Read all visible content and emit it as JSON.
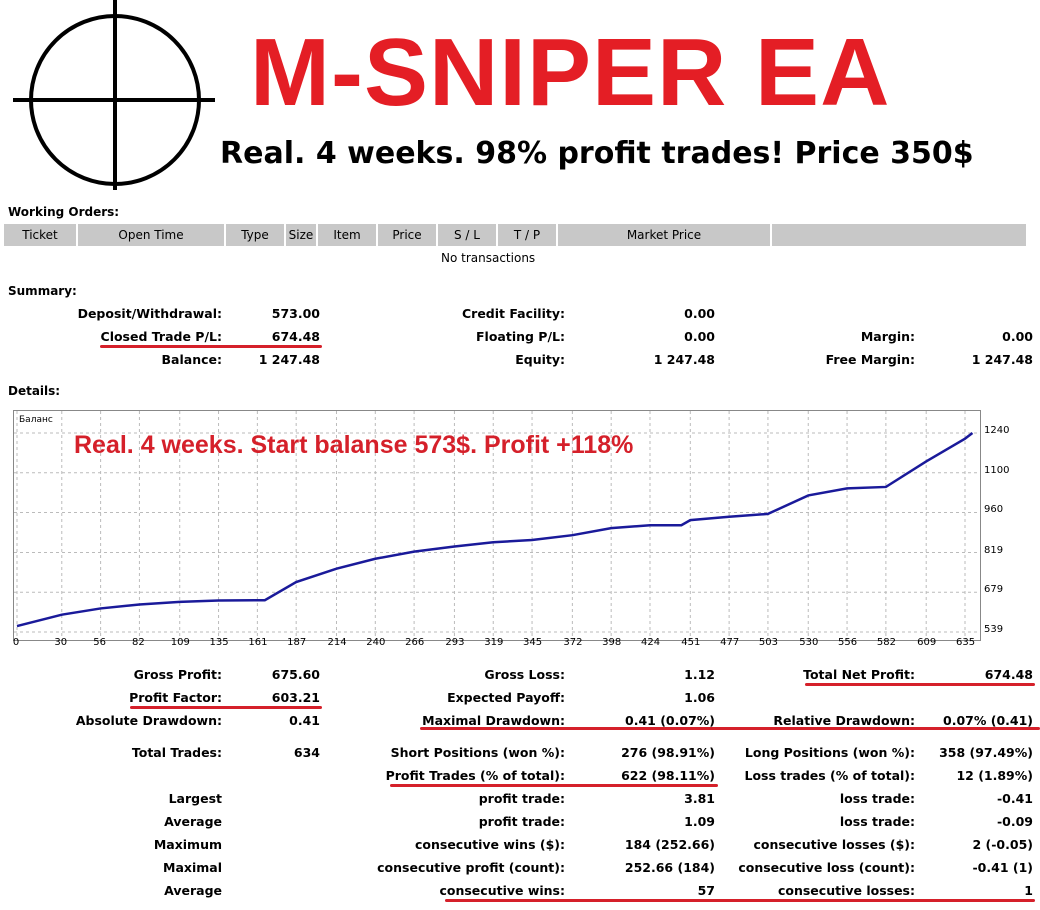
{
  "header": {
    "title": "M-SNIPER EA",
    "subtitle": "Real. 4 weeks. 98% profit trades! Price 350$"
  },
  "working_orders": {
    "heading": "Working Orders:",
    "columns": [
      "Ticket",
      "Open Time",
      "Type",
      "Size",
      "Item",
      "Price",
      "S / L",
      "T / P",
      "Market Price",
      ""
    ],
    "empty_text": "No transactions"
  },
  "summary": {
    "heading": "Summary:",
    "rows": [
      [
        [
          "Deposit/Withdrawal:",
          "573.00"
        ],
        [
          "Credit Facility:",
          "0.00"
        ],
        [
          "",
          ""
        ]
      ],
      [
        [
          "Closed Trade P/L:",
          "674.48"
        ],
        [
          "Floating P/L:",
          "0.00"
        ],
        [
          "Margin:",
          "0.00"
        ]
      ],
      [
        [
          "Balance:",
          "1 247.48"
        ],
        [
          "Equity:",
          "1 247.48"
        ],
        [
          "Free Margin:",
          "1 247.48"
        ]
      ]
    ]
  },
  "details": {
    "heading": "Details:"
  },
  "chart_data": {
    "type": "line",
    "title": "Баланс",
    "annotation": "Real. 4 weeks. Start balanse 573$. Profit +118%",
    "xlabel": "",
    "ylabel": "",
    "x_ticks": [
      "0",
      "30",
      "56",
      "82",
      "109",
      "135",
      "161",
      "187",
      "214",
      "240",
      "266",
      "293",
      "319",
      "345",
      "372",
      "398",
      "424",
      "451",
      "477",
      "503",
      "530",
      "556",
      "582",
      "609",
      "635"
    ],
    "y_ticks": [
      "539",
      "679",
      "819",
      "960",
      "1100",
      "1240"
    ],
    "xlim": [
      0,
      640
    ],
    "ylim": [
      539,
      1260
    ],
    "grid": true,
    "color": "#1a1a9a",
    "series": [
      {
        "name": "Баланс",
        "x": [
          0,
          30,
          56,
          82,
          109,
          135,
          161,
          166,
          187,
          214,
          240,
          266,
          293,
          319,
          345,
          372,
          398,
          424,
          445,
          451,
          477,
          503,
          530,
          556,
          582,
          609,
          635,
          640
        ],
        "y": [
          560,
          600,
          622,
          636,
          645,
          650,
          651,
          651,
          715,
          762,
          797,
          822,
          840,
          855,
          863,
          880,
          905,
          915,
          915,
          933,
          945,
          955,
          1020,
          1045,
          1050,
          1140,
          1220,
          1240
        ]
      }
    ]
  },
  "stats": {
    "rows": [
      [
        [
          "Gross Profit:",
          "675.60"
        ],
        [
          "Gross Loss:",
          "1.12"
        ],
        [
          "Total Net Profit:",
          "674.48"
        ]
      ],
      [
        [
          "Profit Factor:",
          "603.21"
        ],
        [
          "Expected Payoff:",
          "1.06"
        ],
        [
          "",
          ""
        ]
      ],
      [
        [
          "Absolute Drawdown:",
          "0.41"
        ],
        [
          "Maximal Drawdown:",
          "0.41 (0.07%)"
        ],
        [
          "Relative Drawdown:",
          "0.07% (0.41)"
        ]
      ],
      [
        [
          "Total Trades:",
          "634"
        ],
        [
          "Short Positions (won %):",
          "276 (98.91%)"
        ],
        [
          "Long Positions (won %):",
          "358 (97.49%)"
        ]
      ],
      [
        [
          "",
          ""
        ],
        [
          "Profit Trades (% of total):",
          "622 (98.11%)"
        ],
        [
          "Loss trades (% of total):",
          "12 (1.89%)"
        ]
      ],
      [
        [
          "Largest",
          ""
        ],
        [
          "profit trade:",
          "3.81"
        ],
        [
          "loss trade:",
          "-0.41"
        ]
      ],
      [
        [
          "Average",
          ""
        ],
        [
          "profit trade:",
          "1.09"
        ],
        [
          "loss trade:",
          "-0.09"
        ]
      ],
      [
        [
          "Maximum",
          ""
        ],
        [
          "consecutive wins ($):",
          "184 (252.66)"
        ],
        [
          "consecutive losses ($):",
          "2 (-0.05)"
        ]
      ],
      [
        [
          "Maximal",
          ""
        ],
        [
          "consecutive profit (count):",
          "252.66 (184)"
        ],
        [
          "consecutive loss (count):",
          "-0.41 (1)"
        ]
      ],
      [
        [
          "Average",
          ""
        ],
        [
          "consecutive wins:",
          "57"
        ],
        [
          "consecutive losses:",
          "1"
        ]
      ]
    ]
  }
}
